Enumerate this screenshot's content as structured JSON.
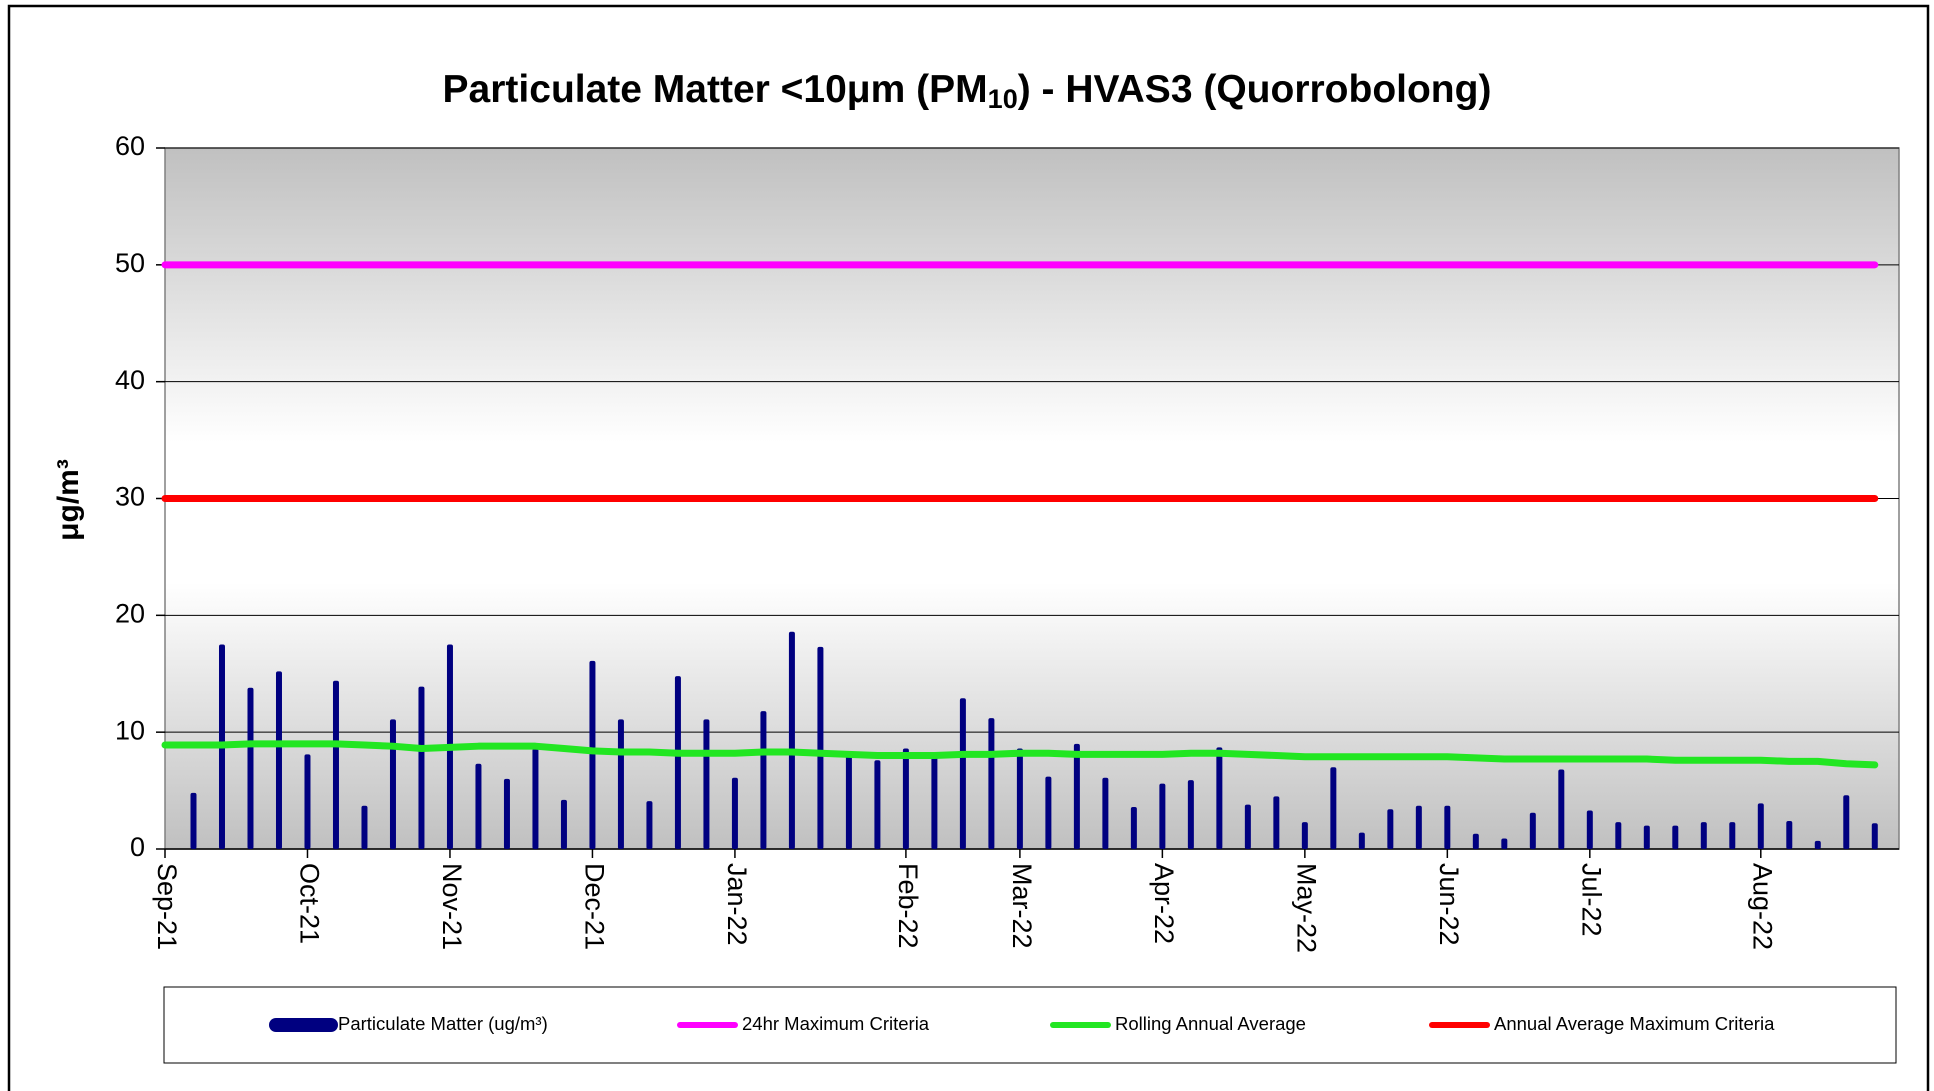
{
  "chart_data": {
    "type": "bar",
    "title": [
      "Particulate Matter <10μm (PM",
      "10",
      ") - HVAS3 (Quorrobolong)"
    ],
    "y_label": "μg/m³",
    "ylim": [
      0,
      60
    ],
    "yticks": [
      0,
      10,
      20,
      30,
      40,
      50,
      60
    ],
    "grid": true,
    "categories": [
      "Sep-21",
      null,
      null,
      null,
      null,
      "Oct-21",
      null,
      null,
      null,
      null,
      "Nov-21",
      null,
      null,
      null,
      null,
      "Dec-21",
      null,
      null,
      null,
      null,
      "Jan-22",
      null,
      null,
      null,
      null,
      null,
      "Feb-22",
      null,
      null,
      null,
      "Mar-22",
      null,
      null,
      null,
      null,
      "Apr-22",
      null,
      null,
      null,
      null,
      "May-22",
      null,
      null,
      null,
      null,
      "Jun-22",
      null,
      null,
      null,
      null,
      "Jul-22",
      null,
      null,
      null,
      null,
      null,
      "Aug-22",
      null,
      null,
      null,
      null
    ],
    "series": [
      {
        "name": "Particulate Matter  (ug/m³)",
        "type": "bar",
        "color": "#000080",
        "values": [
          null,
          4.8,
          17.5,
          13.8,
          15.2,
          8.1,
          14.4,
          3.7,
          11.1,
          13.9,
          17.5,
          7.3,
          6.0,
          8.6,
          4.2,
          16.1,
          11.1,
          4.1,
          14.8,
          11.1,
          6.1,
          11.8,
          18.6,
          17.3,
          8.0,
          7.6,
          8.6,
          8.0,
          12.9,
          11.2,
          8.6,
          6.2,
          9.0,
          6.1,
          3.6,
          5.6,
          5.9,
          8.7,
          3.8,
          4.5,
          2.3,
          7.0,
          1.4,
          3.4,
          3.7,
          3.7,
          1.3,
          0.9,
          3.1,
          6.8,
          3.3,
          2.3,
          2.0,
          2.0,
          2.3,
          2.3,
          3.9,
          2.4,
          0.7,
          4.6,
          2.2
        ]
      },
      {
        "name": "24hr Maximum Criteria",
        "type": "line",
        "color": "#ff00ff",
        "values": [
          50,
          50,
          50,
          50,
          50,
          50,
          50,
          50,
          50,
          50,
          50,
          50,
          50,
          50,
          50,
          50,
          50,
          50,
          50,
          50,
          50,
          50,
          50,
          50,
          50,
          50,
          50,
          50,
          50,
          50,
          50,
          50,
          50,
          50,
          50,
          50,
          50,
          50,
          50,
          50,
          50,
          50,
          50,
          50,
          50,
          50,
          50,
          50,
          50,
          50,
          50,
          50,
          50,
          50,
          50,
          50,
          50,
          50,
          50,
          50,
          50
        ]
      },
      {
        "name": "Rolling Annual Average",
        "type": "line",
        "color": "#22e622",
        "values": [
          8.9,
          8.9,
          8.9,
          9.0,
          9.0,
          9.0,
          9.0,
          8.9,
          8.8,
          8.6,
          8.7,
          8.8,
          8.8,
          8.8,
          8.6,
          8.4,
          8.3,
          8.3,
          8.2,
          8.2,
          8.2,
          8.3,
          8.3,
          8.2,
          8.1,
          8.0,
          8.0,
          8.0,
          8.1,
          8.1,
          8.2,
          8.2,
          8.1,
          8.1,
          8.1,
          8.1,
          8.2,
          8.2,
          8.1,
          8.0,
          7.9,
          7.9,
          7.9,
          7.9,
          7.9,
          7.9,
          7.8,
          7.7,
          7.7,
          7.7,
          7.7,
          7.7,
          7.7,
          7.6,
          7.6,
          7.6,
          7.6,
          7.5,
          7.5,
          7.3,
          7.2
        ]
      },
      {
        "name": "Annual Average Maximum Criteria",
        "type": "line",
        "color": "#ff0000",
        "values": [
          30,
          30,
          30,
          30,
          30,
          30,
          30,
          30,
          30,
          30,
          30,
          30,
          30,
          30,
          30,
          30,
          30,
          30,
          30,
          30,
          30,
          30,
          30,
          30,
          30,
          30,
          30,
          30,
          30,
          30,
          30,
          30,
          30,
          30,
          30,
          30,
          30,
          30,
          30,
          30,
          30,
          30,
          30,
          30,
          30,
          30,
          30,
          30,
          30,
          30,
          30,
          30,
          30,
          30,
          30,
          30,
          30,
          30,
          30,
          30,
          30
        ]
      }
    ]
  }
}
